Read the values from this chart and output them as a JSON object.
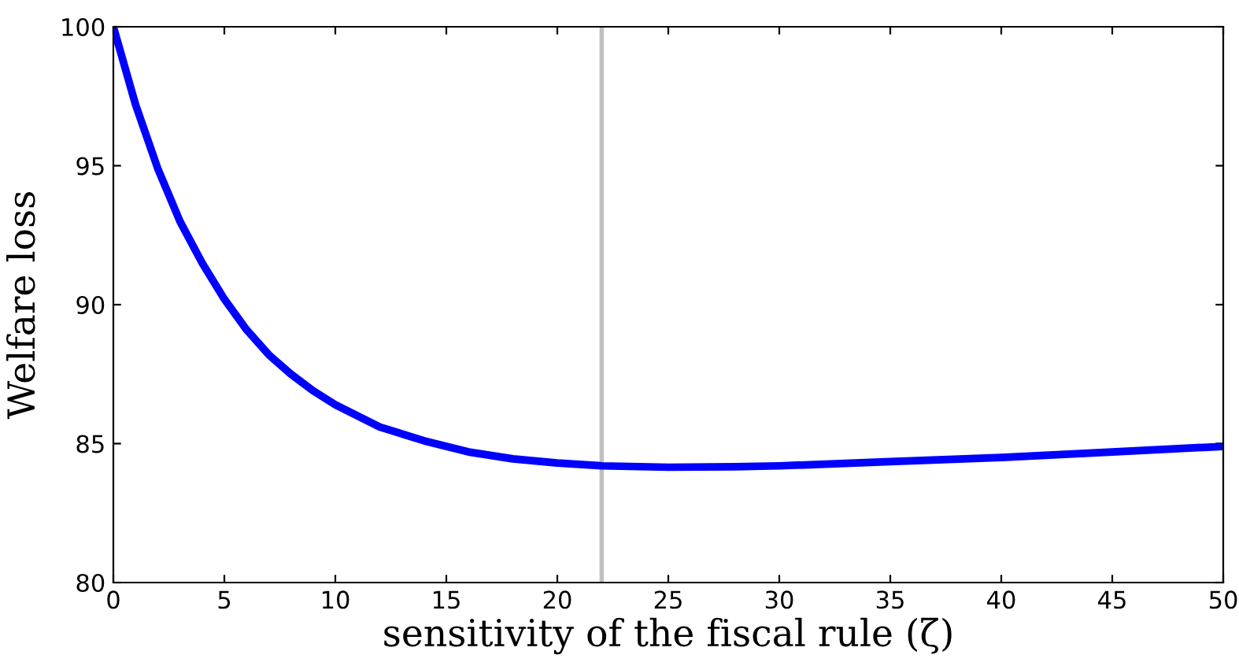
{
  "chart_data": {
    "type": "line",
    "xlabel": "sensitivity of the fiscal rule (ζ)",
    "ylabel": "Welfare loss",
    "x": [
      0,
      1,
      2,
      3,
      4,
      5,
      6,
      7,
      8,
      9,
      10,
      12,
      14,
      16,
      18,
      20,
      22,
      25,
      28,
      30,
      35,
      40,
      45,
      50
    ],
    "series": [
      {
        "color": "#0000ff",
        "values": [
          100,
          97.2,
          94.9,
          93.0,
          91.5,
          90.2,
          89.1,
          88.2,
          87.5,
          86.9,
          86.4,
          85.6,
          85.1,
          84.7,
          84.45,
          84.3,
          84.2,
          84.15,
          84.17,
          84.2,
          84.35,
          84.5,
          84.7,
          84.9
        ]
      }
    ],
    "xlim": [
      0,
      50
    ],
    "xticks": [
      0,
      5,
      10,
      15,
      20,
      25,
      30,
      35,
      40,
      45,
      50
    ],
    "ylim": [
      80,
      100
    ],
    "yticks": [
      80,
      85,
      90,
      95,
      100
    ],
    "ref_lines": [
      {
        "axis": "x",
        "value": 22,
        "color": "#c0c0c0"
      }
    ],
    "grid": false,
    "legend": false,
    "marker": "none",
    "line_style": "solid"
  }
}
